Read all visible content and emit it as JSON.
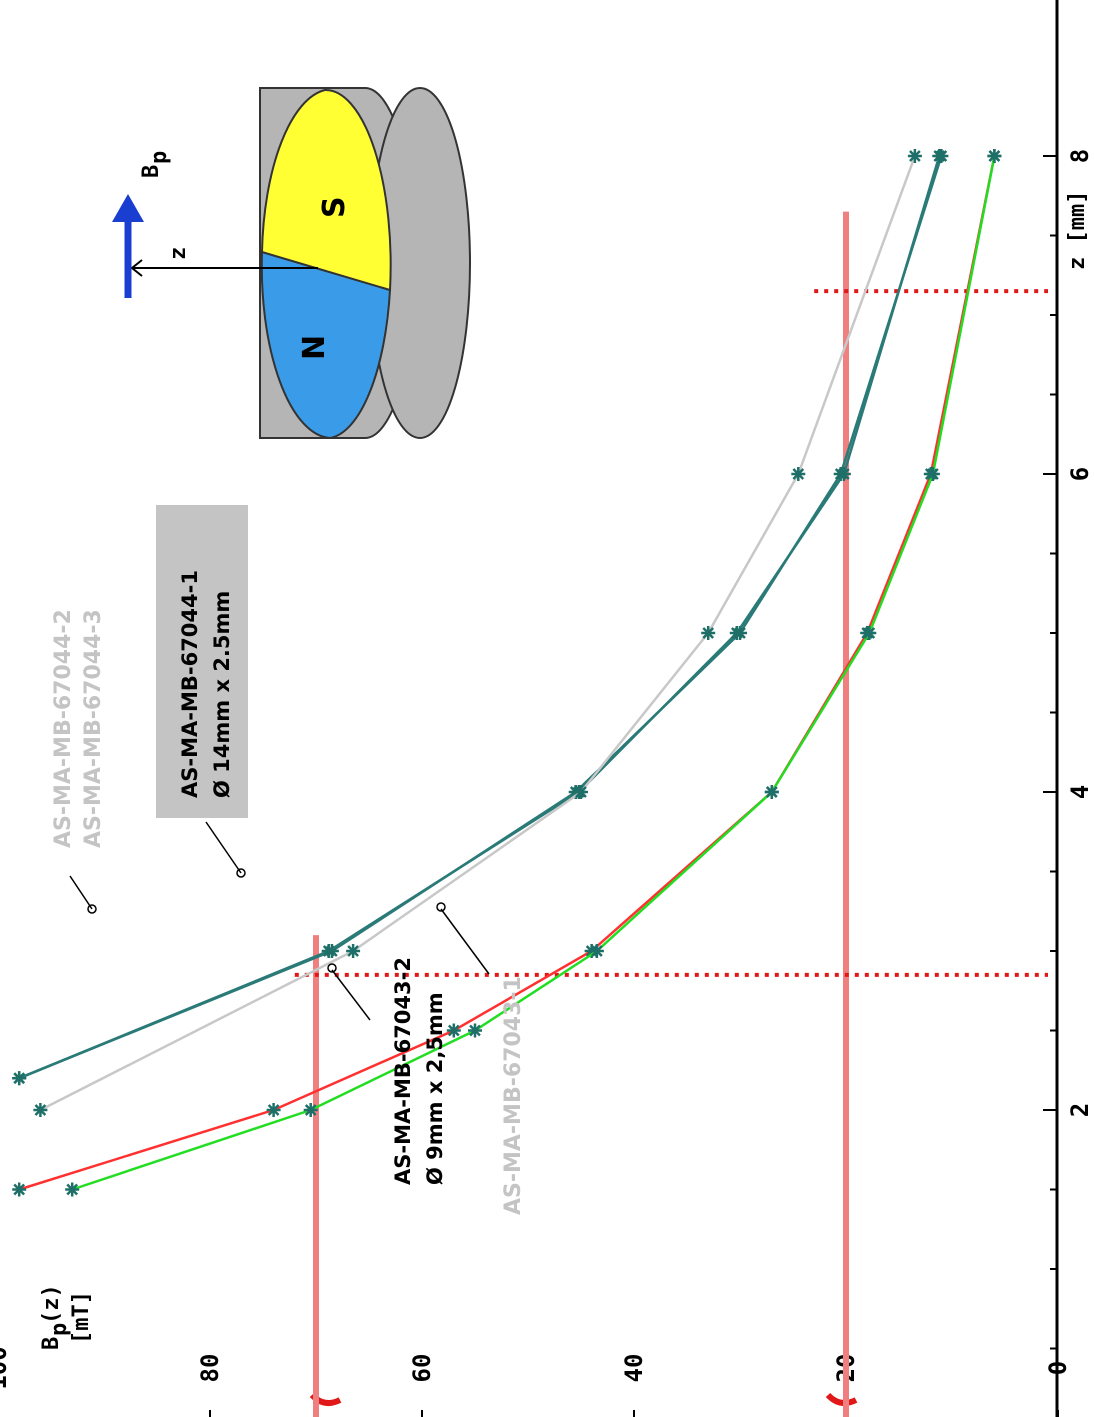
{
  "chart_data": {
    "type": "line",
    "orientation": "rotated-90-clockwise",
    "xlabel": "z [mm]",
    "ylabel": "B_p(z) [mT]",
    "xlim": [
      0,
      8
    ],
    "ylim": [
      0,
      100
    ],
    "x_ticks": [
      "0",
      "2",
      "4",
      "6",
      "8"
    ],
    "y_ticks": [
      "0",
      "20",
      "40",
      "60",
      "80",
      "100"
    ],
    "grid": false,
    "series": [
      {
        "name": "AS-MA-MB-67044-1",
        "color": "#2a7a78",
        "points": [
          [
            2.2,
            98
          ],
          [
            3.0,
            68.5
          ],
          [
            4.0,
            45.5
          ],
          [
            5.0,
            30
          ],
          [
            6.0,
            20.5
          ],
          [
            8.0,
            11
          ]
        ]
      },
      {
        "name": "AS-MA-MB-67044-2",
        "color": "#2a7a78",
        "points": [
          [
            2.2,
            98
          ],
          [
            3.0,
            68.8
          ],
          [
            4.0,
            45.2
          ],
          [
            5.0,
            30.3
          ],
          [
            6.0,
            20.2
          ],
          [
            8.0,
            11.2
          ]
        ]
      },
      {
        "name": "AS-MA-MB-67044-3",
        "color": "#c8c8c8",
        "points": [
          [
            2.0,
            96
          ],
          [
            3.0,
            66.5
          ],
          [
            4.0,
            45
          ],
          [
            5.0,
            33
          ],
          [
            6.0,
            24.5
          ],
          [
            8.0,
            13.5
          ]
        ]
      },
      {
        "name": "AS-MA-MB-67043-2",
        "color": "#ff3030",
        "points": [
          [
            1.5,
            98
          ],
          [
            2.0,
            74
          ],
          [
            2.5,
            57
          ],
          [
            3.0,
            44
          ],
          [
            4.0,
            27
          ],
          [
            5.0,
            18
          ],
          [
            6.0,
            12
          ],
          [
            8.0,
            6
          ]
        ]
      },
      {
        "name": "AS-MA-MB-67043-1",
        "color": "#22dd22",
        "points": [
          [
            1.5,
            93
          ],
          [
            2.0,
            70.5
          ],
          [
            2.5,
            55
          ],
          [
            3.0,
            43.5
          ],
          [
            4.0,
            27
          ],
          [
            5.0,
            17.8
          ],
          [
            6.0,
            11.8
          ],
          [
            8.0,
            6
          ]
        ]
      }
    ],
    "reference_lines": {
      "horizontal_values": [
        70,
        20
      ],
      "vertical_values": [
        2.85,
        7.15
      ]
    },
    "annotations": {
      "grey_labels": [
        "AS-MA-MB-67044-2",
        "AS-MA-MB-67044-3",
        "AS-MA-MB-67043-1"
      ],
      "label_big": [
        "AS-MA-MB-67044-1",
        "Ø 14mm x 2.5mm"
      ],
      "label_small": [
        "AS-MA-MB-67043-2",
        "Ø 9mm x 2,5mm"
      ]
    }
  },
  "diagram": {
    "poles": [
      "N",
      "S"
    ],
    "field_label": "B",
    "field_sub": "p",
    "axis_label": "z"
  },
  "colors": {
    "ref_line": "#f07f7f",
    "ref_dots": "#e01818",
    "marker": "#1e6f68",
    "north": "#3a9ce8",
    "south": "#ffff33",
    "magnet_side": "#b5b5b5",
    "arrow": "#1a3fd0"
  }
}
